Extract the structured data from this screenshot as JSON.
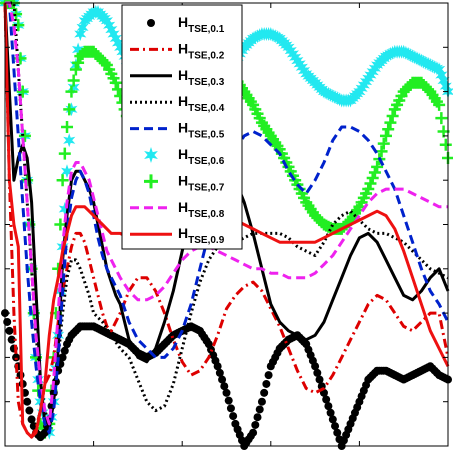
{
  "chart_data": {
    "type": "line",
    "title": "",
    "xlabel": "",
    "ylabel": "",
    "xlim": [
      0,
      100
    ],
    "ylim": [
      0,
      100
    ],
    "grid": false,
    "legend_position": "top-center",
    "series": [
      {
        "name": "H",
        "sub": "TSE,0.1",
        "color": "#000000",
        "style": "dots",
        "x": [
          0,
          1,
          2,
          3,
          4,
          5,
          6,
          7,
          8,
          9,
          10,
          11,
          12,
          13,
          14,
          15,
          16,
          17,
          18,
          19,
          20,
          22,
          24,
          26,
          28,
          30,
          32,
          34,
          36,
          38,
          40,
          42,
          44,
          46,
          48,
          50,
          52,
          54,
          56,
          58,
          60,
          62,
          64,
          66,
          68,
          70,
          72,
          74,
          76,
          78,
          80,
          82,
          84,
          86,
          88,
          90,
          92,
          94,
          96,
          98,
          100
        ],
        "y": [
          30,
          26,
          22,
          18,
          14,
          10,
          6,
          3,
          2,
          3,
          6,
          12,
          17,
          20,
          23,
          25,
          26,
          27,
          27,
          27,
          27,
          26,
          25,
          24,
          23,
          21,
          20,
          21,
          23,
          25,
          26,
          27,
          26,
          23,
          18,
          12,
          5,
          0,
          3,
          10,
          18,
          22,
          24,
          25,
          23,
          18,
          12,
          6,
          0,
          5,
          10,
          15,
          17,
          17,
          16,
          15,
          16,
          17,
          18,
          16,
          15
        ]
      },
      {
        "name": "H",
        "sub": "TSE,0.2",
        "color": "#dd0000",
        "style": "dashdot",
        "x": [
          0,
          1,
          2,
          3,
          4,
          5,
          6,
          7,
          8,
          9,
          10,
          11,
          12,
          13,
          14,
          15,
          16,
          17,
          18,
          19,
          20,
          21,
          22,
          23,
          24,
          26,
          28,
          30,
          32,
          34,
          36,
          38,
          40,
          42,
          44,
          46,
          48,
          50,
          52,
          54,
          56,
          58,
          60,
          62,
          64,
          66,
          68,
          70,
          72,
          74,
          76,
          78,
          80,
          82,
          84,
          86,
          88,
          90,
          92,
          94,
          96,
          98,
          100
        ],
        "y": [
          100,
          60,
          30,
          10,
          5,
          3,
          2,
          4,
          8,
          14,
          16,
          20,
          28,
          35,
          40,
          45,
          48,
          48,
          46,
          42,
          38,
          34,
          30,
          27,
          26,
          30,
          35,
          38,
          38,
          35,
          30,
          24,
          19,
          16,
          17,
          20,
          25,
          31,
          34,
          36,
          37,
          35,
          31,
          27,
          22,
          17,
          13,
          12,
          13,
          16,
          20,
          24,
          28,
          32,
          34,
          33,
          30,
          27,
          26,
          28,
          30,
          30,
          20
        ]
      },
      {
        "name": "H",
        "sub": "TSE,0.3",
        "color": "#000000",
        "style": "solid",
        "x": [
          0,
          1,
          2,
          3,
          4,
          5,
          6,
          7,
          8,
          9,
          10,
          11,
          12,
          13,
          14,
          15,
          16,
          17,
          18,
          19,
          20,
          21,
          22,
          23,
          24,
          25,
          26,
          28,
          30,
          32,
          34,
          36,
          38,
          40,
          42,
          44,
          46,
          48,
          50,
          52,
          54,
          56,
          58,
          60,
          62,
          64,
          66,
          68,
          70,
          72,
          74,
          76,
          78,
          80,
          82,
          84,
          86,
          88,
          90,
          92,
          94,
          96,
          98,
          100
        ],
        "y": [
          100,
          80,
          60,
          65,
          68,
          65,
          55,
          35,
          15,
          5,
          4,
          10,
          22,
          42,
          52,
          60,
          62,
          62,
          60,
          58,
          55,
          50,
          45,
          40,
          37,
          34,
          32,
          24,
          20,
          19,
          22,
          28,
          35,
          44,
          52,
          58,
          62,
          64,
          63,
          60,
          55,
          48,
          40,
          32,
          28,
          26,
          25,
          24,
          25,
          28,
          33,
          38,
          43,
          47,
          48,
          46,
          42,
          38,
          34,
          33,
          35,
          38,
          40,
          35
        ]
      },
      {
        "name": "H",
        "sub": "TSE,0.4",
        "color": "#000000",
        "style": "dotted",
        "x": [
          0,
          1,
          2,
          3,
          4,
          5,
          6,
          7,
          8,
          9,
          10,
          11,
          12,
          13,
          14,
          15,
          16,
          17,
          18,
          19,
          20,
          22,
          24,
          26,
          28,
          30,
          32,
          34,
          36,
          38,
          40,
          42,
          44,
          46,
          48,
          50,
          52,
          54,
          56,
          58,
          60,
          62,
          64,
          66,
          68,
          70,
          72,
          74,
          76,
          78,
          80,
          82,
          84,
          86,
          88,
          90,
          92,
          94,
          96,
          98,
          100
        ],
        "y": [
          100,
          100,
          100,
          85,
          70,
          55,
          40,
          25,
          15,
          8,
          5,
          10,
          20,
          30,
          38,
          42,
          42,
          40,
          37,
          34,
          30,
          28,
          25,
          22,
          20,
          15,
          10,
          8,
          9,
          14,
          22,
          30,
          37,
          42,
          45,
          46,
          46,
          47,
          48,
          48,
          48,
          48,
          47,
          45,
          44,
          43,
          46,
          50,
          52,
          53,
          51,
          49,
          48,
          48,
          47,
          46,
          44,
          42,
          40,
          39,
          38
        ]
      },
      {
        "name": "H",
        "sub": "TSE,0.5",
        "color": "#0022cc",
        "style": "dashed",
        "x": [
          0,
          1,
          2,
          3,
          4,
          5,
          6,
          7,
          8,
          9,
          10,
          11,
          12,
          13,
          14,
          15,
          16,
          17,
          18,
          19,
          20,
          21,
          22,
          23,
          24,
          26,
          28,
          30,
          32,
          34,
          36,
          38,
          40,
          42,
          44,
          46,
          48,
          50,
          52,
          54,
          56,
          58,
          60,
          62,
          64,
          66,
          68,
          70,
          72,
          74,
          76,
          78,
          80,
          82,
          84,
          86,
          88,
          90,
          92,
          94,
          96,
          98,
          100
        ],
        "y": [
          100,
          100,
          85,
          70,
          55,
          40,
          28,
          18,
          10,
          5,
          3,
          8,
          20,
          35,
          48,
          56,
          60,
          62,
          60,
          57,
          52,
          47,
          43,
          40,
          38,
          34,
          28,
          24,
          22,
          20,
          20,
          22,
          26,
          32,
          40,
          48,
          55,
          62,
          67,
          70,
          71,
          70,
          68,
          66,
          62,
          59,
          57,
          60,
          64,
          69,
          72,
          72,
          71,
          69,
          66,
          62,
          58,
          52,
          46,
          40,
          35,
          32,
          28
        ]
      },
      {
        "name": "H",
        "sub": "TSE,0.6",
        "color": "#22e8f0",
        "style": "stars",
        "x": [
          0,
          1,
          2,
          3,
          4,
          5,
          6,
          7,
          8,
          9,
          10,
          11,
          12,
          13,
          14,
          15,
          16,
          17,
          18,
          19,
          20,
          21,
          22,
          23,
          24,
          25,
          26,
          28,
          30,
          32,
          34,
          36,
          38,
          40,
          42,
          44,
          46,
          48,
          50,
          52,
          54,
          56,
          58,
          60,
          62,
          64,
          66,
          68,
          70,
          72,
          74,
          76,
          78,
          80,
          82,
          84,
          86,
          88,
          90,
          92,
          94,
          96,
          98,
          100
        ],
        "y": [
          100,
          100,
          100,
          95,
          80,
          60,
          40,
          20,
          10,
          5,
          3,
          10,
          25,
          45,
          62,
          76,
          86,
          93,
          96,
          97,
          98,
          98,
          97,
          96,
          94,
          92,
          90,
          86,
          84,
          84,
          86,
          88,
          89,
          89,
          88,
          86,
          84,
          83,
          84,
          87,
          90,
          92,
          93,
          93,
          92,
          90,
          87,
          84,
          82,
          80,
          79,
          78,
          78,
          80,
          83,
          86,
          88,
          89,
          89,
          88,
          87,
          86,
          85,
          80
        ]
      },
      {
        "name": "H",
        "sub": "TSE,0.7",
        "color": "#22ee22",
        "style": "plus",
        "x": [
          0,
          1,
          2,
          3,
          4,
          5,
          6,
          7,
          8,
          9,
          10,
          11,
          12,
          13,
          14,
          15,
          16,
          17,
          18,
          19,
          20,
          21,
          22,
          23,
          24,
          25,
          26,
          28,
          30,
          32,
          34,
          36,
          38,
          40,
          42,
          44,
          46,
          48,
          50,
          52,
          54,
          56,
          58,
          60,
          62,
          64,
          66,
          68,
          70,
          72,
          74,
          76,
          78,
          80,
          82,
          84,
          86,
          88,
          90,
          92,
          94,
          96,
          98,
          100
        ],
        "y": [
          100,
          100,
          100,
          95,
          80,
          60,
          40,
          20,
          5,
          3,
          5,
          20,
          40,
          60,
          72,
          80,
          85,
          88,
          89,
          89,
          89,
          88,
          87,
          86,
          84,
          82,
          79,
          73,
          67,
          62,
          62,
          64,
          68,
          75,
          80,
          84,
          86,
          86,
          85,
          83,
          80,
          77,
          73,
          70,
          67,
          63,
          59,
          55,
          52,
          50,
          49,
          49,
          51,
          54,
          58,
          63,
          70,
          76,
          80,
          82,
          82,
          80,
          77,
          65
        ]
      },
      {
        "name": "H",
        "sub": "TSE,0.8",
        "color": "#ee22ee",
        "style": "dashed",
        "x": [
          0,
          1,
          2,
          3,
          4,
          5,
          6,
          7,
          8,
          9,
          10,
          11,
          12,
          13,
          14,
          15,
          16,
          17,
          18,
          19,
          20,
          21,
          22,
          23,
          24,
          26,
          28,
          30,
          32,
          34,
          36,
          38,
          40,
          42,
          44,
          46,
          48,
          50,
          52,
          54,
          56,
          58,
          60,
          62,
          64,
          66,
          68,
          70,
          72,
          74,
          76,
          78,
          80,
          82,
          84,
          86,
          88,
          90,
          92,
          94,
          96,
          98,
          100
        ],
        "y": [
          100,
          100,
          95,
          85,
          70,
          55,
          40,
          25,
          15,
          8,
          5,
          15,
          30,
          45,
          55,
          62,
          64,
          64,
          62,
          60,
          56,
          52,
          48,
          44,
          42,
          38,
          35,
          33,
          33,
          34,
          36,
          39,
          42,
          44,
          45,
          45,
          44,
          43,
          42,
          41,
          40,
          40,
          39,
          39,
          38,
          38,
          38,
          39,
          41,
          43,
          46,
          49,
          52,
          55,
          57,
          58,
          58,
          58,
          57,
          56,
          55,
          54,
          54
        ]
      },
      {
        "name": "H",
        "sub": "TSE,0.9",
        "color": "#ee1111",
        "style": "solid",
        "x": [
          0,
          1,
          2,
          3,
          4,
          5,
          6,
          7,
          8,
          9,
          10,
          11,
          12,
          13,
          14,
          15,
          16,
          17,
          18,
          19,
          20,
          21,
          22,
          23,
          24,
          26,
          28,
          30,
          32,
          34,
          36,
          38,
          40,
          42,
          44,
          46,
          48,
          50,
          52,
          54,
          56,
          58,
          60,
          62,
          64,
          66,
          68,
          70,
          72,
          74,
          76,
          78,
          80,
          82,
          84,
          86,
          88,
          90,
          92,
          94,
          96,
          98,
          100
        ],
        "y": [
          100,
          60,
          50,
          45,
          5,
          3,
          2,
          3,
          8,
          14,
          25,
          33,
          38,
          44,
          48,
          52,
          54,
          54,
          54,
          53,
          52,
          51,
          50,
          49,
          48,
          48,
          47,
          47,
          47,
          47,
          47,
          48,
          49,
          50,
          51,
          52,
          52,
          52,
          51,
          50,
          49,
          48,
          47,
          46,
          46,
          46,
          46,
          46,
          47,
          48,
          49,
          50,
          51,
          52,
          53,
          52,
          49,
          44,
          38,
          32,
          26,
          22,
          18
        ]
      }
    ]
  }
}
